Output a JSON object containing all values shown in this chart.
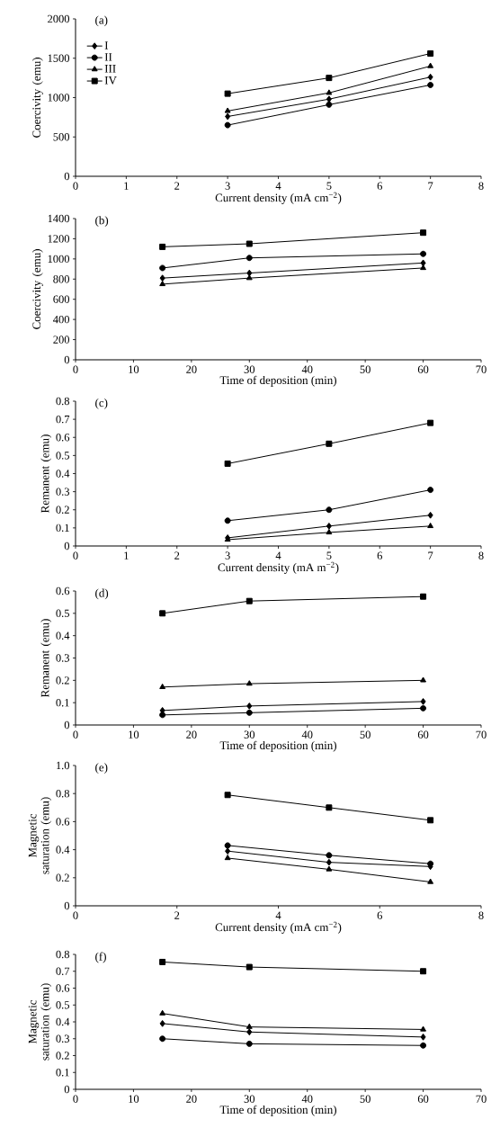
{
  "chart_data": [
    {
      "type": "line",
      "annotations": [
        "(a)"
      ],
      "xlabel": "Current density (mA cm$^{−2}$)",
      "ylabel": "Coercivity (emu)",
      "x": [
        3,
        5,
        7
      ],
      "xlim": [
        0,
        8
      ],
      "xticks": [
        0,
        1,
        2,
        3,
        4,
        5,
        6,
        7,
        8
      ],
      "ylim": [
        0,
        2000
      ],
      "yticks": [
        0,
        500,
        1000,
        1500,
        2000
      ],
      "legend": "top left",
      "grid": false,
      "series": [
        {
          "name": "I",
          "color": "#000000",
          "marker": "diamond",
          "values": [
            760,
            980,
            1260
          ]
        },
        {
          "name": "II",
          "color": "#000000",
          "marker": "circle",
          "values": [
            650,
            910,
            1160
          ]
        },
        {
          "name": "III",
          "color": "#000000",
          "marker": "triangle",
          "values": [
            830,
            1060,
            1400
          ]
        },
        {
          "name": "IV",
          "color": "#000000",
          "marker": "square",
          "values": [
            1050,
            1250,
            1560
          ]
        }
      ]
    },
    {
      "type": "line",
      "annotations": [
        "(b)"
      ],
      "xlabel": "Time of deposition (min)",
      "ylabel": "Coercivity (emu)",
      "x": [
        15,
        30,
        60
      ],
      "xlim": [
        0,
        70
      ],
      "xticks": [
        0,
        10,
        20,
        30,
        40,
        50,
        60,
        70
      ],
      "ylim": [
        0,
        1400
      ],
      "yticks": [
        0,
        200,
        400,
        600,
        800,
        1000,
        1200,
        1400
      ],
      "grid": false,
      "series": [
        {
          "color": "#000000",
          "marker": "diamond",
          "values": [
            810,
            860,
            960
          ]
        },
        {
          "color": "#000000",
          "marker": "circle",
          "values": [
            910,
            1010,
            1050
          ]
        },
        {
          "color": "#000000",
          "marker": "triangle",
          "values": [
            750,
            810,
            910
          ]
        },
        {
          "color": "#000000",
          "marker": "square",
          "values": [
            1120,
            1150,
            1260
          ]
        }
      ]
    },
    {
      "type": "line",
      "annotations": [
        "(c)"
      ],
      "xlabel": "Current density (mA m$^{−2}$)",
      "ylabel": "Remanent (emu)",
      "x": [
        3,
        5,
        7
      ],
      "xlim": [
        0,
        8
      ],
      "xticks": [
        0,
        1,
        2,
        3,
        4,
        5,
        6,
        7,
        8
      ],
      "ylim": [
        0,
        0.8
      ],
      "yticks": [
        0,
        0.1,
        0.2,
        0.3,
        0.4,
        0.5,
        0.6,
        0.7,
        0.8
      ],
      "grid": false,
      "series": [
        {
          "color": "#000000",
          "marker": "diamond",
          "values": [
            0.045,
            0.11,
            0.17
          ]
        },
        {
          "color": "#000000",
          "marker": "circle",
          "values": [
            0.14,
            0.2,
            0.31
          ]
        },
        {
          "color": "#000000",
          "marker": "triangle",
          "values": [
            0.035,
            0.075,
            0.11
          ]
        },
        {
          "color": "#000000",
          "marker": "square",
          "values": [
            0.455,
            0.565,
            0.68
          ]
        }
      ]
    },
    {
      "type": "line",
      "annotations": [
        "(d)"
      ],
      "xlabel": "Time of deposition (min)",
      "ylabel": "Remanent (emu)",
      "x": [
        15,
        30,
        60
      ],
      "xlim": [
        0,
        70
      ],
      "xticks": [
        0,
        10,
        20,
        30,
        40,
        50,
        60,
        70
      ],
      "ylim": [
        0,
        0.6
      ],
      "yticks": [
        0,
        0.1,
        0.2,
        0.3,
        0.4,
        0.5,
        0.6
      ],
      "grid": false,
      "series": [
        {
          "color": "#000000",
          "marker": "diamond",
          "values": [
            0.065,
            0.085,
            0.105
          ]
        },
        {
          "color": "#000000",
          "marker": "circle",
          "values": [
            0.045,
            0.055,
            0.075
          ]
        },
        {
          "color": "#000000",
          "marker": "triangle",
          "values": [
            0.17,
            0.185,
            0.2
          ]
        },
        {
          "color": "#000000",
          "marker": "square",
          "values": [
            0.5,
            0.555,
            0.575
          ]
        }
      ]
    },
    {
      "type": "line",
      "annotations": [
        "(e)"
      ],
      "xlabel": "Current density (mA cm$^{−2}$)",
      "ylabel": "Magnetic saturation (emu)",
      "x": [
        3,
        5,
        7
      ],
      "xlim": [
        0,
        8
      ],
      "xticks": [
        0,
        2,
        4,
        6,
        8
      ],
      "ylim": [
        0,
        1.0
      ],
      "yticks": [
        0,
        0.2,
        0.4,
        0.6,
        0.8,
        {
          "value": 1.0,
          "label": "1.0"
        }
      ],
      "grid": false,
      "series": [
        {
          "color": "#000000",
          "marker": "diamond",
          "values": [
            0.39,
            0.31,
            0.28
          ]
        },
        {
          "color": "#000000",
          "marker": "circle",
          "values": [
            0.43,
            0.36,
            0.3
          ]
        },
        {
          "color": "#000000",
          "marker": "triangle",
          "values": [
            0.34,
            0.26,
            0.17
          ]
        },
        {
          "color": "#000000",
          "marker": "square",
          "values": [
            0.79,
            0.7,
            0.61
          ]
        }
      ]
    },
    {
      "type": "line",
      "annotations": [
        "(f)"
      ],
      "xlabel": "Time of deposition (min)",
      "ylabel": "Magnetic saturation (emu)",
      "x": [
        15,
        30,
        60
      ],
      "xlim": [
        0,
        70
      ],
      "xticks": [
        0,
        10,
        20,
        30,
        40,
        50,
        60,
        70
      ],
      "ylim": [
        0,
        0.8
      ],
      "yticks": [
        0,
        0.1,
        0.2,
        0.3,
        0.4,
        0.5,
        0.6,
        0.7,
        0.8
      ],
      "grid": false,
      "series": [
        {
          "color": "#000000",
          "marker": "diamond",
          "values": [
            0.39,
            0.34,
            0.31
          ]
        },
        {
          "color": "#000000",
          "marker": "circle",
          "values": [
            0.3,
            0.27,
            0.26
          ]
        },
        {
          "color": "#000000",
          "marker": "triangle",
          "values": [
            0.45,
            0.37,
            0.355
          ]
        },
        {
          "color": "#000000",
          "marker": "square",
          "values": [
            0.755,
            0.725,
            0.7
          ]
        }
      ]
    }
  ]
}
